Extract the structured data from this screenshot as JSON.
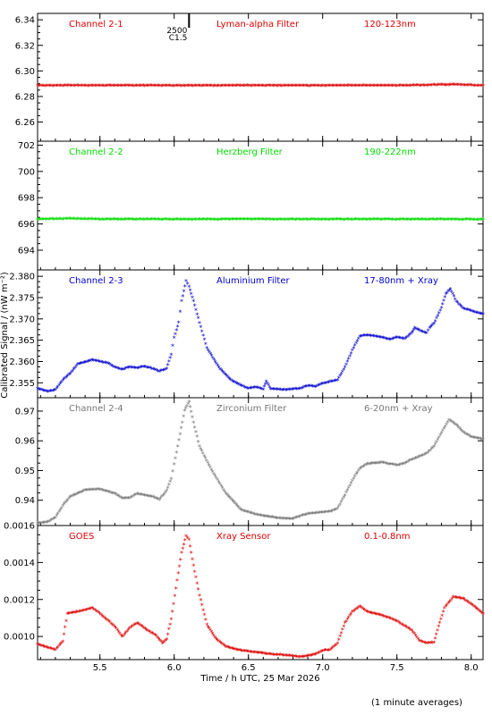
{
  "figure": {
    "xlabel": "Time / h UTC, 25 Mar 2026",
    "ylabel": "Calibrated Signal / (nW m⁻²)",
    "footnote": "(1 minute averages)",
    "event_marker": {
      "x": 6.1,
      "label_top": "2500",
      "label_bottom": "C1.5"
    }
  },
  "chart_data": [
    {
      "type": "scatter",
      "panel_labels": [
        "Channel 2-1",
        "Lyman-alpha Filter",
        "120-123nm"
      ],
      "color": "#dd0000",
      "ylim": [
        6.245,
        6.345
      ],
      "yticks": [
        6.26,
        6.28,
        6.3,
        6.32,
        6.34
      ],
      "ytick_labels": [
        "6.26",
        "6.28",
        "6.30",
        "6.32",
        "6.34"
      ],
      "xlim": [
        5.08,
        8.08
      ],
      "series": [
        {
          "points": [
            [
              5.08,
              6.288
            ],
            [
              5.5,
              6.288
            ],
            [
              6.0,
              6.288
            ],
            [
              6.5,
              6.288
            ],
            [
              7.0,
              6.288
            ],
            [
              7.5,
              6.288
            ],
            [
              7.8,
              6.2885
            ],
            [
              7.9,
              6.2888
            ],
            [
              8.08,
              6.288
            ]
          ]
        }
      ]
    },
    {
      "type": "scatter",
      "panel_labels": [
        "Channel 2-2",
        "Herzberg Filter",
        "190-222nm"
      ],
      "color": "#00dd00",
      "ylim": [
        692.5,
        702.3
      ],
      "yticks": [
        694,
        696,
        698,
        700,
        702
      ],
      "ytick_labels": [
        "694",
        "696",
        "698",
        "700",
        "702"
      ],
      "xlim": [
        5.08,
        8.08
      ],
      "series": [
        {
          "points": [
            [
              5.08,
              696.3
            ],
            [
              5.3,
              696.35
            ],
            [
              5.5,
              696.3
            ],
            [
              6.0,
              696.3
            ],
            [
              6.5,
              696.3
            ],
            [
              7.0,
              696.3
            ],
            [
              7.5,
              696.3
            ],
            [
              8.08,
              696.3
            ]
          ]
        }
      ]
    },
    {
      "type": "scatter",
      "panel_labels": [
        "Channel 2-3",
        "Aluminium Filter",
        "17-80nm + Xray"
      ],
      "color": "#0000cc",
      "ylim": [
        2.3515,
        2.3815
      ],
      "yticks": [
        2.355,
        2.36,
        2.365,
        2.37,
        2.375,
        2.38
      ],
      "ytick_labels": [
        "2.355",
        "2.360",
        "2.365",
        "2.370",
        "2.375",
        "2.380"
      ],
      "xlim": [
        5.08,
        8.08
      ],
      "series": [
        {
          "points": [
            [
              5.08,
              2.3535
            ],
            [
              5.15,
              2.3528
            ],
            [
              5.2,
              2.3532
            ],
            [
              5.25,
              2.3555
            ],
            [
              5.3,
              2.357
            ],
            [
              5.35,
              2.3592
            ],
            [
              5.45,
              2.3602
            ],
            [
              5.55,
              2.3595
            ],
            [
              5.6,
              2.3585
            ],
            [
              5.65,
              2.358
            ],
            [
              5.7,
              2.3585
            ],
            [
              5.75,
              2.3583
            ],
            [
              5.8,
              2.3587
            ],
            [
              5.85,
              2.3582
            ],
            [
              5.9,
              2.3575
            ],
            [
              5.95,
              2.3582
            ],
            [
              5.98,
              2.3615
            ],
            [
              6.0,
              2.3655
            ],
            [
              6.03,
              2.369
            ],
            [
              6.05,
              2.374
            ],
            [
              6.08,
              2.3788
            ],
            [
              6.1,
              2.3775
            ],
            [
              6.13,
              2.374
            ],
            [
              6.17,
              2.369
            ],
            [
              6.22,
              2.363
            ],
            [
              6.3,
              2.3585
            ],
            [
              6.38,
              2.3555
            ],
            [
              6.45,
              2.3542
            ],
            [
              6.5,
              2.3535
            ],
            [
              6.55,
              2.3538
            ],
            [
              6.6,
              2.3533
            ],
            [
              6.62,
              2.3552
            ],
            [
              6.65,
              2.3534
            ],
            [
              6.75,
              2.3532
            ],
            [
              6.85,
              2.3535
            ],
            [
              6.9,
              2.3542
            ],
            [
              6.95,
              2.354
            ],
            [
              7.0,
              2.3547
            ],
            [
              7.1,
              2.3555
            ],
            [
              7.15,
              2.3585
            ],
            [
              7.2,
              2.3625
            ],
            [
              7.25,
              2.3658
            ],
            [
              7.3,
              2.366
            ],
            [
              7.35,
              2.3658
            ],
            [
              7.4,
              2.3655
            ],
            [
              7.45,
              2.365
            ],
            [
              7.5,
              2.3655
            ],
            [
              7.55,
              2.3652
            ],
            [
              7.6,
              2.3665
            ],
            [
              7.62,
              2.3678
            ],
            [
              7.65,
              2.3672
            ],
            [
              7.7,
              2.3665
            ],
            [
              7.72,
              2.3678
            ],
            [
              7.75,
              2.3688
            ],
            [
              7.8,
              2.3725
            ],
            [
              7.83,
              2.3758
            ],
            [
              7.86,
              2.3768
            ],
            [
              7.9,
              2.374
            ],
            [
              7.95,
              2.3722
            ],
            [
              8.0,
              2.3718
            ],
            [
              8.05,
              2.3712
            ],
            [
              8.08,
              2.371
            ]
          ]
        }
      ]
    },
    {
      "type": "scatter",
      "panel_labels": [
        "Channel 2-4",
        "Zirconium Filter",
        "6-20nm + Xray"
      ],
      "color": "#777777",
      "ylim": [
        0.9315,
        0.9745
      ],
      "yticks": [
        0.94,
        0.95,
        0.96,
        0.97
      ],
      "ytick_labels": [
        "0.94",
        "0.95",
        "0.96",
        "0.97"
      ],
      "xlim": [
        5.08,
        8.08
      ],
      "series": [
        {
          "points": [
            [
              5.08,
              0.932
            ],
            [
              5.15,
              0.9325
            ],
            [
              5.2,
              0.934
            ],
            [
              5.25,
              0.938
            ],
            [
              5.3,
              0.941
            ],
            [
              5.4,
              0.9432
            ],
            [
              5.5,
              0.9435
            ],
            [
              5.6,
              0.942
            ],
            [
              5.65,
              0.9405
            ],
            [
              5.7,
              0.9405
            ],
            [
              5.75,
              0.942
            ],
            [
              5.85,
              0.941
            ],
            [
              5.9,
              0.94
            ],
            [
              5.95,
              0.943
            ],
            [
              5.98,
              0.947
            ],
            [
              6.0,
              0.952
            ],
            [
              6.04,
              0.962
            ],
            [
              6.07,
              0.97
            ],
            [
              6.1,
              0.973
            ],
            [
              6.13,
              0.966
            ],
            [
              6.17,
              0.958
            ],
            [
              6.25,
              0.95
            ],
            [
              6.35,
              0.942
            ],
            [
              6.45,
              0.9365
            ],
            [
              6.55,
              0.935
            ],
            [
              6.6,
              0.9345
            ],
            [
              6.7,
              0.9338
            ],
            [
              6.8,
              0.9335
            ],
            [
              6.85,
              0.9345
            ],
            [
              6.9,
              0.9352
            ],
            [
              6.95,
              0.9355
            ],
            [
              7.05,
              0.936
            ],
            [
              7.1,
              0.937
            ],
            [
              7.15,
              0.9415
            ],
            [
              7.2,
              0.9465
            ],
            [
              7.25,
              0.9505
            ],
            [
              7.3,
              0.952
            ],
            [
              7.4,
              0.9525
            ],
            [
              7.5,
              0.9515
            ],
            [
              7.55,
              0.9522
            ],
            [
              7.6,
              0.9535
            ],
            [
              7.65,
              0.9545
            ],
            [
              7.7,
              0.9555
            ],
            [
              7.75,
              0.958
            ],
            [
              7.8,
              0.9625
            ],
            [
              7.85,
              0.9668
            ],
            [
              7.9,
              0.9652
            ],
            [
              7.95,
              0.9625
            ],
            [
              8.0,
              0.9612
            ],
            [
              8.08,
              0.9602
            ]
          ]
        }
      ]
    },
    {
      "type": "scatter",
      "panel_labels": [
        "GOES",
        "Xray Sensor",
        "0.1-0.8nm"
      ],
      "color": "#dd0000",
      "ylim": [
        0.000875,
        0.0016
      ],
      "yticks": [
        0.001,
        0.0012,
        0.0014,
        0.0016
      ],
      "ytick_labels": [
        "0.0010",
        "0.0012",
        "0.0014",
        "0.0016"
      ],
      "xlim": [
        5.08,
        8.08
      ],
      "series": [
        {
          "points": [
            [
              5.08,
              0.000955
            ],
            [
              5.15,
              0.000935
            ],
            [
              5.2,
              0.000925
            ],
            [
              5.25,
              0.00097
            ],
            [
              5.28,
              0.00112
            ],
            [
              5.35,
              0.00113
            ],
            [
              5.4,
              0.00114
            ],
            [
              5.45,
              0.00115
            ],
            [
              5.5,
              0.00112
            ],
            [
              5.6,
              0.00105
            ],
            [
              5.65,
              0.000995
            ],
            [
              5.7,
              0.00104
            ],
            [
              5.75,
              0.00107
            ],
            [
              5.82,
              0.00103
            ],
            [
              5.88,
              0.001
            ],
            [
              5.92,
              0.00096
            ],
            [
              5.95,
              0.00098
            ],
            [
              5.98,
              0.00109
            ],
            [
              6.02,
              0.0013
            ],
            [
              6.05,
              0.00145
            ],
            [
              6.08,
              0.00154
            ],
            [
              6.1,
              0.00152
            ],
            [
              6.13,
              0.00138
            ],
            [
              6.17,
              0.00122
            ],
            [
              6.22,
              0.00106
            ],
            [
              6.28,
              0.000985
            ],
            [
              6.35,
              0.00094
            ],
            [
              6.45,
              0.00092
            ],
            [
              6.55,
              0.00091
            ],
            [
              6.65,
              0.0009
            ],
            [
              6.75,
              0.000895
            ],
            [
              6.85,
              0.000885
            ],
            [
              6.95,
              0.0009
            ],
            [
              7.0,
              0.00092
            ],
            [
              7.05,
              0.000925
            ],
            [
              7.1,
              0.00096
            ],
            [
              7.15,
              0.00107
            ],
            [
              7.2,
              0.00113
            ],
            [
              7.25,
              0.00116
            ],
            [
              7.3,
              0.00113
            ],
            [
              7.4,
              0.00111
            ],
            [
              7.5,
              0.00108
            ],
            [
              7.6,
              0.00103
            ],
            [
              7.65,
              0.000975
            ],
            [
              7.7,
              0.00096
            ],
            [
              7.75,
              0.000965
            ],
            [
              7.78,
              0.00105
            ],
            [
              7.82,
              0.00115
            ],
            [
              7.88,
              0.00121
            ],
            [
              7.95,
              0.0012
            ],
            [
              8.02,
              0.00116
            ],
            [
              8.08,
              0.00112
            ]
          ]
        }
      ]
    }
  ]
}
